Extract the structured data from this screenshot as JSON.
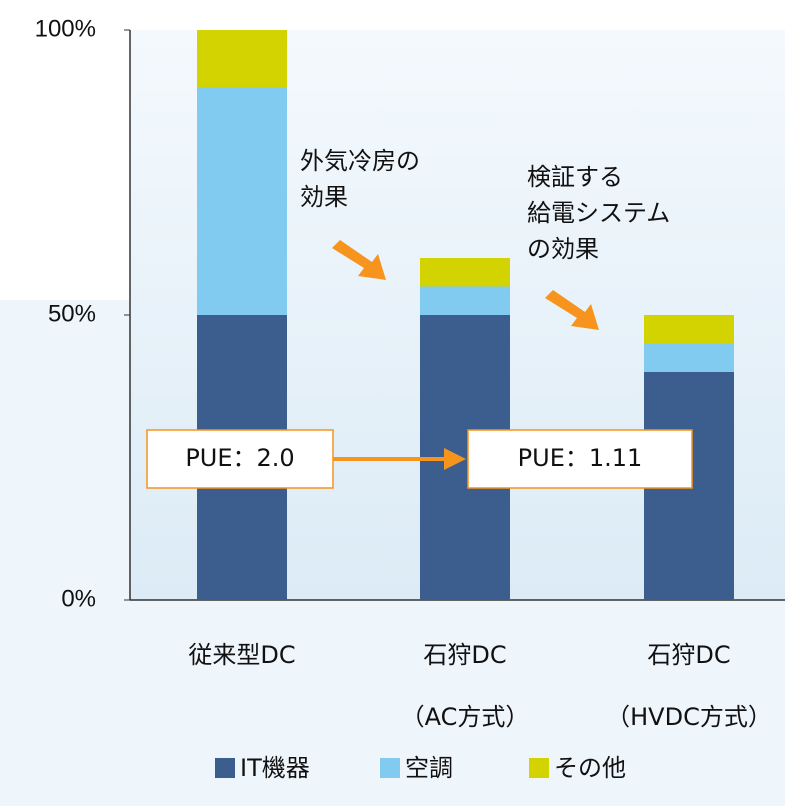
{
  "chart_data": {
    "type": "stacked_bar",
    "categories": [
      "従来型DC",
      "石狩DC",
      "石狩DC"
    ],
    "x_sublabels": [
      null,
      "（AC方式）",
      "（HVDC方式）"
    ],
    "series": [
      {
        "name": "IT機器",
        "color": "#3b5e8f",
        "values": [
          50,
          50,
          40
        ]
      },
      {
        "name": "空調",
        "color": "#80cbef",
        "values": [
          40,
          5,
          5
        ]
      },
      {
        "name": "その他",
        "color": "#d2d300",
        "values": [
          10,
          5,
          5
        ]
      }
    ],
    "ylim": [
      0,
      100
    ],
    "yticks": [
      {
        "value": 0,
        "label": "0%"
      },
      {
        "value": 50,
        "label": "50%"
      },
      {
        "value": 100,
        "label": "100%"
      }
    ],
    "annotations": [
      {
        "lines": [
          "外気冷房の",
          "効果"
        ]
      },
      {
        "lines": [
          "検証する",
          "給電システム",
          "の効果"
        ]
      },
      {
        "lines": [
          "PUE：2.0"
        ]
      },
      {
        "lines": [
          "PUE：1.11"
        ]
      }
    ],
    "legend": "bottom"
  }
}
